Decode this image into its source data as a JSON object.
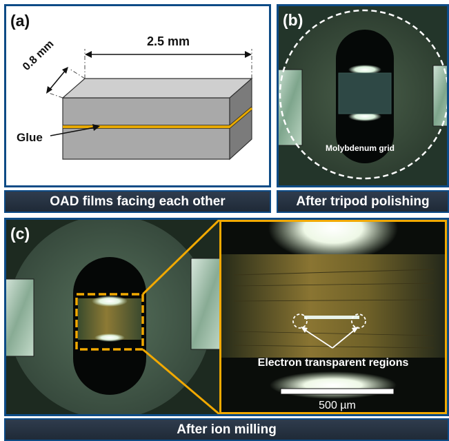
{
  "panel_a": {
    "label": "(a)",
    "dim_length": "2.5 mm",
    "dim_thickness": "0.8 mm",
    "glue_label": "Glue",
    "caption": "OAD films facing each other"
  },
  "panel_b": {
    "label": "(b)",
    "grid_label": "Molybdenum grid",
    "caption": "After tripod polishing"
  },
  "panel_c": {
    "label": "(c)",
    "annotation": "Electron transparent regions",
    "scale_bar": "500 µm",
    "caption": "After ion milling"
  },
  "colors": {
    "frame_blue": "#0d4b86",
    "highlight_orange": "#f2a900",
    "glue_yellow": "#e6a800",
    "block_gray": "#a9a9a9"
  }
}
